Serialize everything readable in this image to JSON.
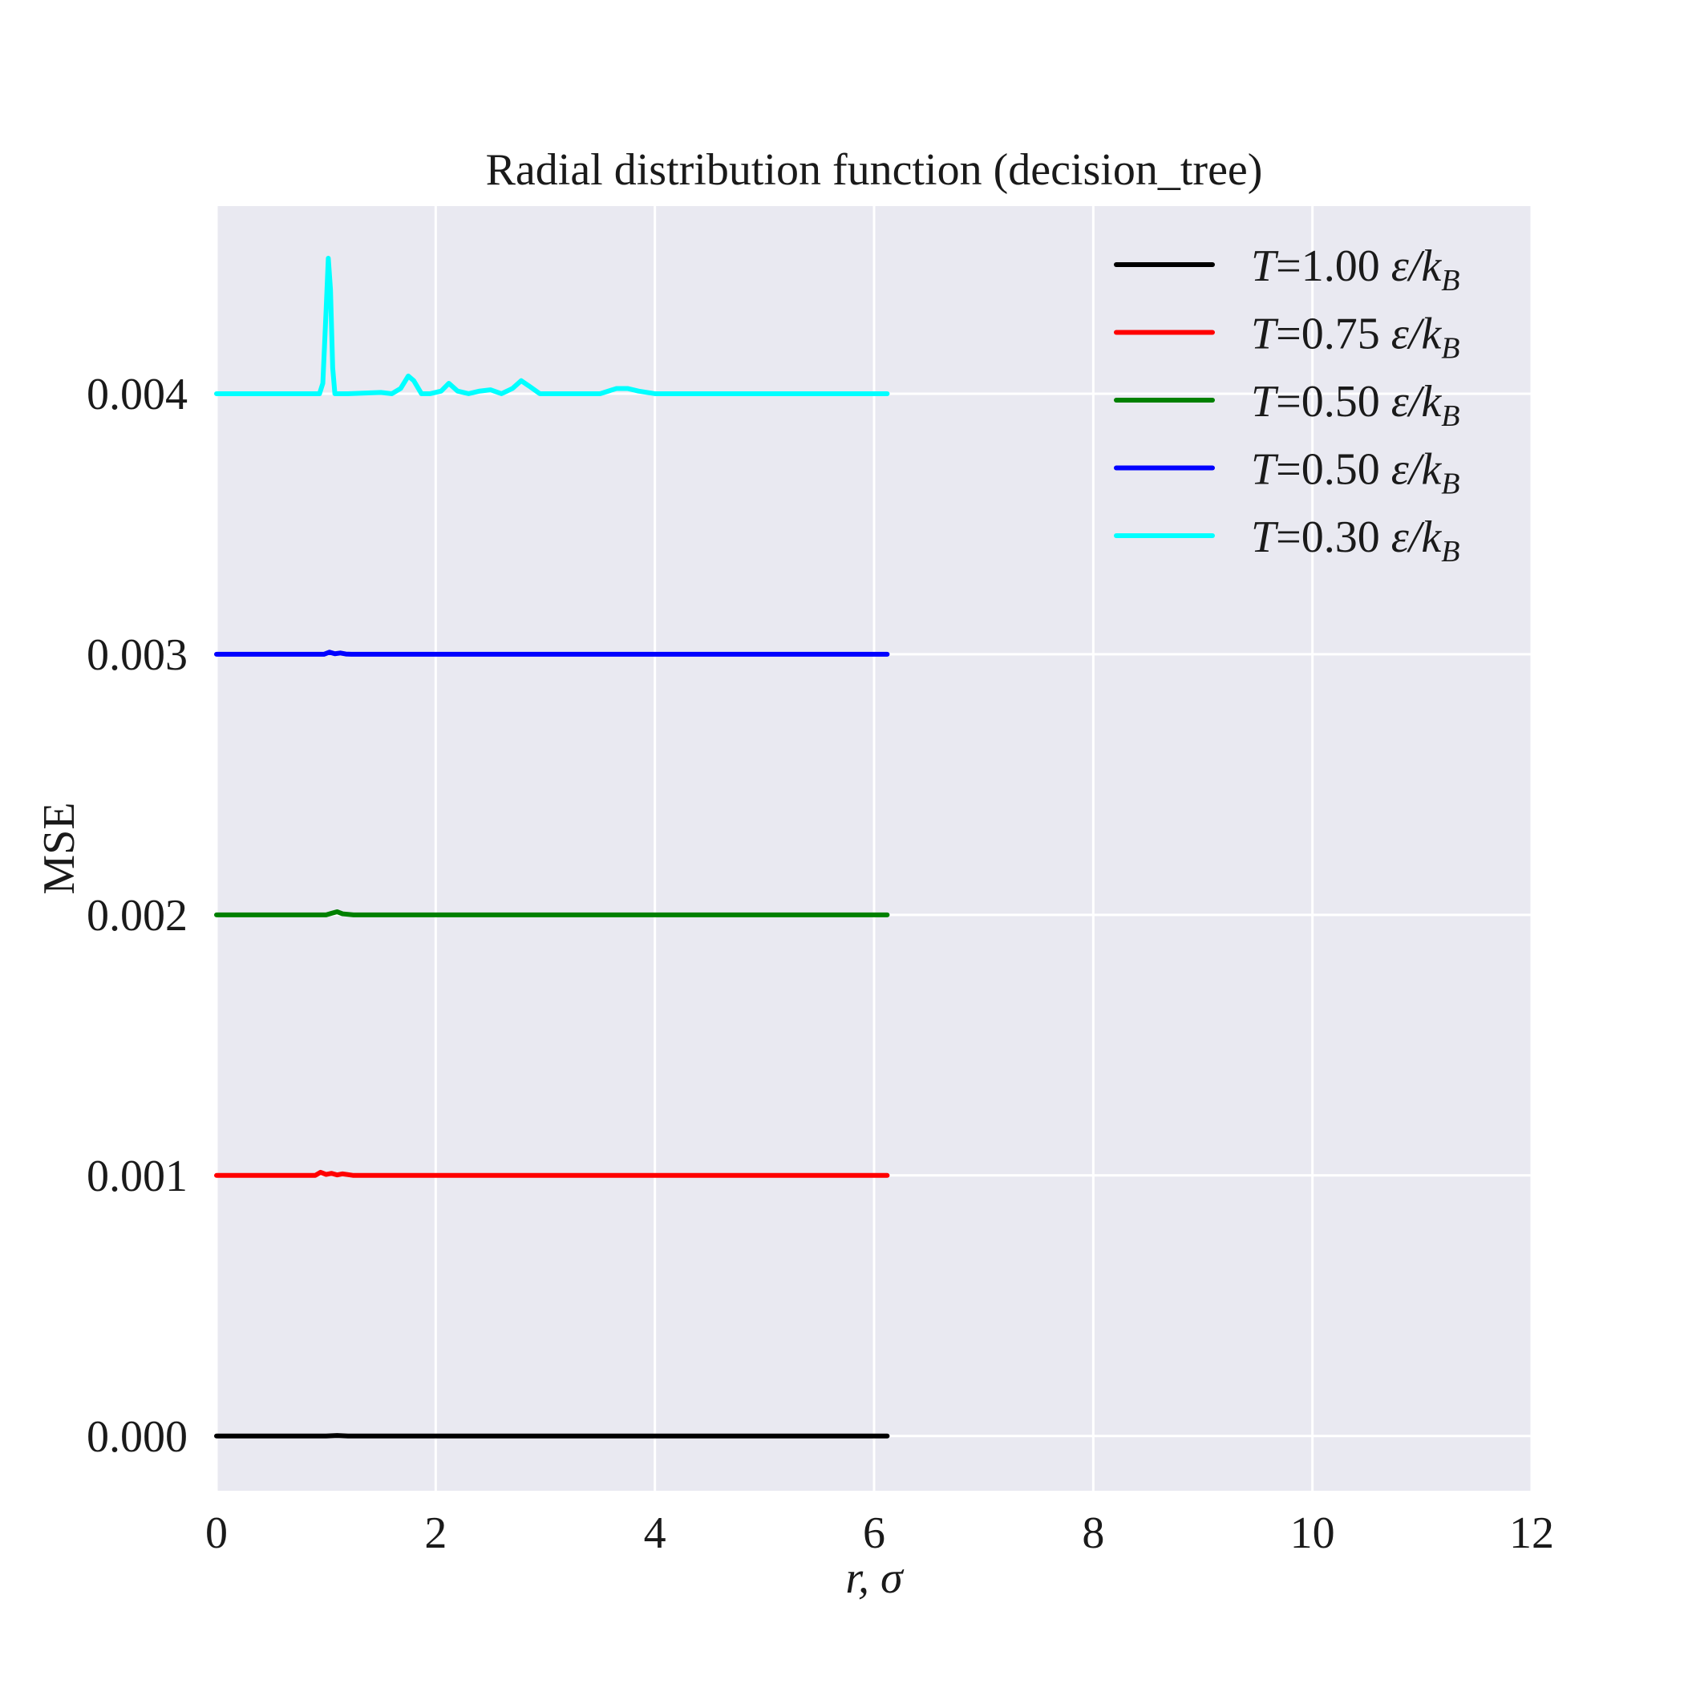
{
  "chart_data": {
    "type": "line",
    "title": "Radial distribution function (decision_tree)",
    "xlabel": "r, σ",
    "ylabel": "MSE",
    "xlim": [
      0,
      12
    ],
    "ylim": [
      -0.00021,
      0.00472
    ],
    "xticks": [
      0,
      2,
      4,
      6,
      8,
      10,
      12
    ],
    "xtick_labels": [
      "0",
      "2",
      "4",
      "6",
      "8",
      "10",
      "12"
    ],
    "yticks": [
      0,
      0.001,
      0.002,
      0.003,
      0.004
    ],
    "ytick_labels": [
      "0.000",
      "0.001",
      "0.002",
      "0.003",
      "0.004"
    ],
    "grid": true,
    "background": "#e9e9f1",
    "grid_color": "#ffffff",
    "legend_position": "top-right",
    "series": [
      {
        "name": "T = 1.00 ε/k_B",
        "legend": {
          "T": "T",
          "eq": "=",
          "value": "1.00",
          "eps": "ε/k",
          "sub": "B"
        },
        "color": "#000000",
        "x": [
          0,
          1.0,
          1.1,
          1.2,
          2.0,
          6.12
        ],
        "y": [
          0,
          0,
          2e-06,
          0,
          0,
          0
        ]
      },
      {
        "name": "T = 0.75 ε/k_B",
        "legend": {
          "T": "T",
          "eq": "=",
          "value": "0.75",
          "eps": "ε/k",
          "sub": "B"
        },
        "color": "#ff0000",
        "x": [
          0,
          0.9,
          0.95,
          1.0,
          1.05,
          1.1,
          1.15,
          1.2,
          1.25,
          6.12
        ],
        "y": [
          0.001,
          0.001,
          0.001012,
          0.001004,
          0.001008,
          0.001002,
          0.001006,
          0.001003,
          0.001,
          0.001
        ]
      },
      {
        "name": "T = 0.50 ε/k_B",
        "legend": {
          "T": "T",
          "eq": "=",
          "value": "0.50",
          "eps": "ε/k",
          "sub": "B"
        },
        "color": "#008000",
        "x": [
          0,
          1.0,
          1.05,
          1.1,
          1.15,
          1.25,
          6.12
        ],
        "y": [
          0.002,
          0.002,
          0.002006,
          0.002012,
          0.002004,
          0.002,
          0.002
        ]
      },
      {
        "name": "T = 0.50 ε/k_B",
        "legend": {
          "T": "T",
          "eq": "=",
          "value": "0.50",
          "eps": "ε/k",
          "sub": "B"
        },
        "color": "#0000ff",
        "x": [
          0,
          0.98,
          1.03,
          1.08,
          1.13,
          1.18,
          1.23,
          6.12
        ],
        "y": [
          0.003,
          0.003,
          0.003008,
          0.003002,
          0.003005,
          0.003001,
          0.003,
          0.003
        ]
      },
      {
        "name": "T = 0.30 ε/k_B",
        "legend": {
          "T": "T",
          "eq": "=",
          "value": "0.30",
          "eps": "ε/k",
          "sub": "B"
        },
        "color": "#00ffff",
        "x": [
          0,
          0.94,
          0.97,
          1.0,
          1.02,
          1.04,
          1.06,
          1.08,
          1.12,
          1.2,
          1.5,
          1.6,
          1.68,
          1.75,
          1.8,
          1.87,
          1.95,
          2.05,
          2.12,
          2.2,
          2.3,
          2.4,
          2.5,
          2.6,
          2.7,
          2.78,
          2.85,
          2.95,
          3.1,
          3.5,
          3.65,
          3.75,
          3.85,
          4.0,
          4.5,
          6.12
        ],
        "y": [
          0.004,
          0.004,
          0.00404,
          0.00432,
          0.00452,
          0.0044,
          0.0041,
          0.004,
          0.004,
          0.004,
          0.004005,
          0.004,
          0.00402,
          0.004068,
          0.00405,
          0.004,
          0.004,
          0.00401,
          0.00404,
          0.00401,
          0.004,
          0.00401,
          0.004015,
          0.004,
          0.00402,
          0.00405,
          0.00403,
          0.004,
          0.004,
          0.004,
          0.00402,
          0.00402,
          0.00401,
          0.004,
          0.004,
          0.004
        ]
      }
    ]
  }
}
